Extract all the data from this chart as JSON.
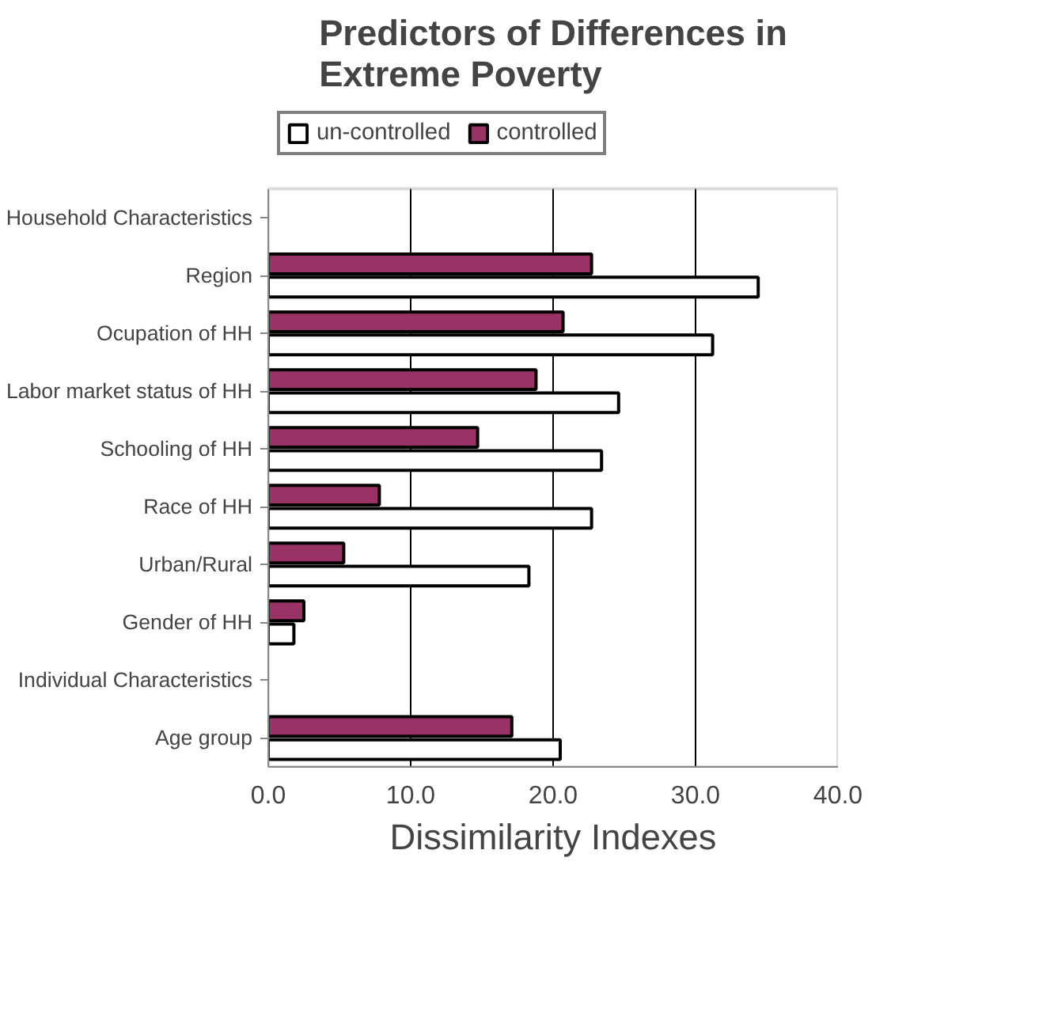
{
  "chart_data": {
    "type": "bar",
    "orientation": "horizontal",
    "title": "Predictors of Differences in\nExtreme Poverty",
    "xlabel": "Dissimilarity Indexes",
    "categories": [
      "Household Characteristics",
      "Region",
      "Ocupation of HH",
      "Labor market status of HH",
      "Schooling of HH",
      "Race of HH",
      "Urban/Rural",
      "Gender of HH",
      "Individual Characteristics",
      "Age group"
    ],
    "series": [
      {
        "name": "un-controlled",
        "color": "#ffffff",
        "values": [
          null,
          34.4,
          31.2,
          24.6,
          23.4,
          22.7,
          18.3,
          1.8,
          null,
          20.5
        ]
      },
      {
        "name": "controlled",
        "color": "#993366",
        "values": [
          null,
          22.7,
          20.7,
          18.8,
          14.7,
          7.8,
          5.3,
          2.5,
          null,
          17.1
        ]
      }
    ],
    "xlim": [
      0,
      40
    ],
    "xticks": [
      {
        "value": 0,
        "label": "0.0"
      },
      {
        "value": 10,
        "label": "10.0"
      },
      {
        "value": 20,
        "label": "20.0"
      },
      {
        "value": 30,
        "label": "30.0"
      },
      {
        "value": 40,
        "label": "40.0"
      }
    ],
    "grid": "x",
    "legend": "top"
  }
}
